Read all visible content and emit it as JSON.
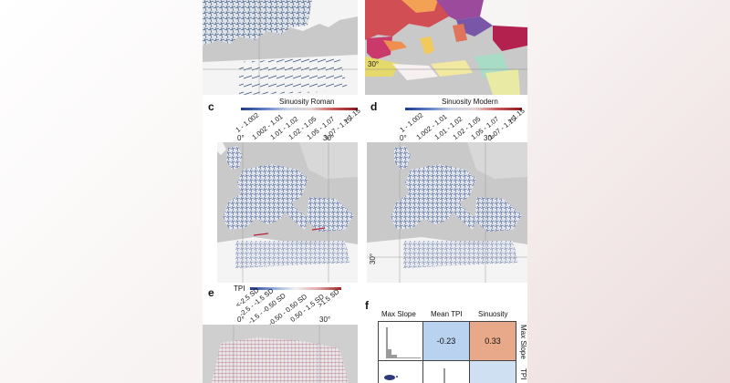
{
  "panels": {
    "c": {
      "label": "c",
      "legend_title": "Sinuosity Roman",
      "ticks": [
        "1 - 1.002",
        "1.002 - 1.01",
        "1.01 - 1.02",
        "1.02 - 1.05",
        "1.05 - 1.07",
        "1.07 - 1.15",
        "> 1.15"
      ],
      "lon0": "0°",
      "lon30": "30°"
    },
    "d": {
      "label": "d",
      "legend_title": "Sinuosity Modern",
      "ticks": [
        "1 - 1.002",
        "1.002 - 1.01",
        "1.01 - 1.02",
        "1.02 - 1.05",
        "1.05 - 1.07",
        "1.07 - 1.15",
        "> 1.15"
      ],
      "lon0": "0°",
      "lon30": "30°",
      "lat30": "30°"
    },
    "b": {
      "lat30": "30°"
    },
    "e": {
      "label": "e",
      "legend_title": "TPI",
      "ticks": [
        "<-2.5 SD",
        "-2.5 - -1.5 SD",
        "-1.5 - -0.50 SD",
        "-0.50 - 0.50 SD",
        "0.50 - 1.5 SD",
        ">1.5 SD"
      ],
      "lon0": "0°",
      "lon30": "30°"
    },
    "f": {
      "label": "f",
      "headers": [
        "Max Slope",
        "Mean TPI",
        "Sinuosity"
      ],
      "row_labels": [
        "Max Slope",
        "TPI"
      ],
      "values": [
        "-0.23",
        "0.33"
      ],
      "colors": {
        "negative": "#b9d2ef",
        "positive": "#e7a98a"
      }
    }
  }
}
